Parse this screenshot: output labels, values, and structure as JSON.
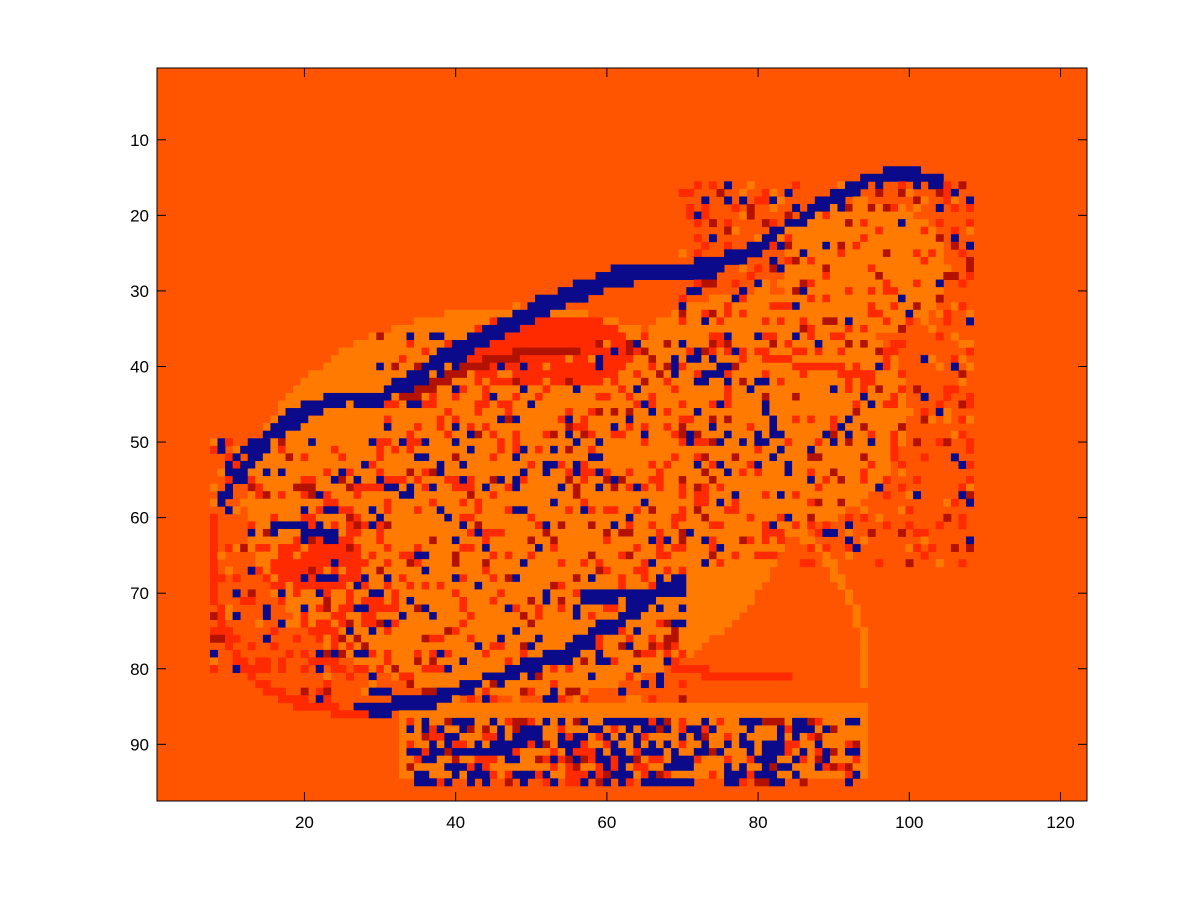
{
  "colors": {
    "background": "#ff5500",
    "orange": "#ff7a00",
    "red": "#ff2a00",
    "dark_red": "#b31200",
    "navy": "#0a0a8a",
    "axes": "#000000",
    "figure_bg": "#ffffff"
  },
  "chart_data": {
    "type": "heatmap",
    "title": "",
    "xlabel": "",
    "ylabel": "",
    "grid": false,
    "colormap": "jet",
    "xlim": [
      0.5,
      123.5
    ],
    "ylim": [
      97.5,
      0.5
    ],
    "x_ticks": [
      20,
      40,
      60,
      80,
      100,
      120
    ],
    "y_ticks": [
      10,
      20,
      30,
      40,
      50,
      60,
      70,
      80,
      90
    ],
    "x_tick_labels": [
      "20",
      "40",
      "60",
      "80",
      "100",
      "120"
    ],
    "y_tick_labels": [
      "10",
      "20",
      "30",
      "40",
      "50",
      "60",
      "70",
      "80",
      "90"
    ],
    "matrix_size": [
      97,
      123
    ],
    "background_class": "background",
    "regions": [
      {
        "class": "orange",
        "shape": "ellipse",
        "cx": 48,
        "cy": 58,
        "rx": 36,
        "ry": 26
      },
      {
        "class": "orange",
        "shape": "ellipse",
        "cx": 80,
        "cy": 46,
        "rx": 20,
        "ry": 16
      },
      {
        "class": "orange",
        "shape": "ellipse",
        "cx": 94,
        "cy": 27,
        "rx": 11,
        "ry": 9
      },
      {
        "class": "orange",
        "shape": "rect",
        "x0": 33,
        "x1": 94,
        "y0": 85,
        "y1": 94
      },
      {
        "class": "red",
        "shape": "ellipse",
        "cx": 52,
        "cy": 38,
        "rx": 12,
        "ry": 5
      },
      {
        "class": "red",
        "shape": "ellipse",
        "cx": 22,
        "cy": 66,
        "rx": 6,
        "ry": 4
      }
    ],
    "polylines": [
      {
        "class": "navy",
        "points": [
          [
            9,
            57
          ],
          [
            14,
            51
          ],
          [
            18,
            46
          ],
          [
            24,
            44
          ],
          [
            30,
            44
          ],
          [
            36,
            40
          ],
          [
            42,
            36
          ],
          [
            48,
            34
          ],
          [
            55,
            30
          ],
          [
            62,
            27
          ],
          [
            70,
            27
          ],
          [
            78,
            25
          ],
          [
            86,
            20
          ],
          [
            92,
            16
          ],
          [
            98,
            14
          ],
          [
            104,
            15
          ]
        ]
      },
      {
        "class": "navy",
        "points": [
          [
            10,
            53
          ],
          [
            16,
            48
          ],
          [
            22,
            45
          ]
        ]
      },
      {
        "class": "navy",
        "points": [
          [
            27,
            85
          ],
          [
            36,
            84
          ],
          [
            48,
            80
          ],
          [
            56,
            77
          ],
          [
            62,
            73
          ],
          [
            66,
            70
          ],
          [
            70,
            68
          ]
        ]
      },
      {
        "class": "navy",
        "points": [
          [
            57,
            70
          ],
          [
            64,
            70
          ],
          [
            70,
            69
          ]
        ]
      },
      {
        "class": "navy",
        "points": [
          [
            30,
            44
          ],
          [
            42,
            37
          ],
          [
            50,
            32
          ],
          [
            58,
            29
          ],
          [
            66,
            27
          ],
          [
            74,
            27
          ]
        ]
      },
      {
        "class": "dark_red",
        "points": [
          [
            34,
            44
          ],
          [
            42,
            40
          ],
          [
            50,
            38
          ],
          [
            56,
            38
          ]
        ]
      },
      {
        "class": "red",
        "points": [
          [
            8,
            60
          ],
          [
            8,
            70
          ],
          [
            10,
            77
          ],
          [
            14,
            82
          ],
          [
            20,
            85
          ],
          [
            28,
            86
          ]
        ]
      },
      {
        "class": "red",
        "points": [
          [
            66,
            76
          ],
          [
            70,
            80
          ],
          [
            76,
            81
          ],
          [
            84,
            81
          ]
        ]
      },
      {
        "class": "red",
        "points": [
          [
            80,
            38
          ],
          [
            86,
            40
          ],
          [
            90,
            40
          ],
          [
            95,
            42
          ]
        ]
      },
      {
        "class": "orange",
        "points": [
          [
            76,
            55
          ],
          [
            82,
            60
          ],
          [
            88,
            64
          ],
          [
            92,
            70
          ],
          [
            94,
            76
          ],
          [
            94,
            82
          ]
        ]
      },
      {
        "class": "navy",
        "points": [
          [
            16,
            61
          ],
          [
            24,
            62
          ]
        ]
      }
    ],
    "text_band": {
      "x0": 34,
      "x1": 93,
      "y0": 87,
      "y1": 95
    },
    "scatter_density": {
      "navy": 0.07,
      "red": 0.13,
      "dark_red": 0.05,
      "orange": 0.06
    },
    "scatter_zones": [
      {
        "x0": 30,
        "x1": 76,
        "y0": 36,
        "y1": 56
      },
      {
        "x0": 20,
        "x1": 70,
        "y0": 54,
        "y1": 84
      },
      {
        "x0": 70,
        "x1": 108,
        "y0": 16,
        "y1": 66
      },
      {
        "x0": 8,
        "x1": 32,
        "y0": 50,
        "y1": 80
      }
    ],
    "seed": 7
  }
}
